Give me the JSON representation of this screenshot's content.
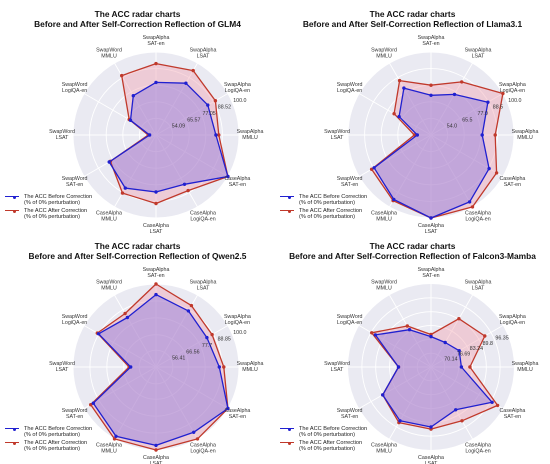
{
  "theme": {
    "before_color": "#2020d0",
    "after_color": "#c0392b",
    "after_fill": "#f2a6b4",
    "before_fill": "#8e7be0",
    "grid_bg": "#eaeaf2"
  },
  "legend": {
    "before_line1": "The ACC Before Correction",
    "before_line2": "(% of 0% perturbation)",
    "after_line1": "The ACC After Correction",
    "after_line2": "(% of 0% perturbation)"
  },
  "chart_data": [
    {
      "type": "radar",
      "title": "The ACC radar charts",
      "subtitle": "Before and After Self-Correction Reflection of GLM4",
      "axes": [
        "SwapAlpha SAT-en",
        "SwapAlpha LSAT",
        "SwapAlpha LogiQA-en",
        "SwapAlpha MMLU",
        "CaseAlpha SAT-en",
        "CaseAlpha LogiQA-en",
        "CaseAlpha LSAT",
        "CaseAlpha MMLU",
        "SwapWord SAT-en",
        "SwapWord LSAT",
        "SwapWord LogiQA-en",
        "SwapWord MMLU"
      ],
      "rticks": [
        54.09,
        65.57,
        77.05,
        88.52,
        100.0
      ],
      "rticks_shown": [
        true,
        true,
        true,
        true,
        true
      ],
      "rmin": 42.6,
      "rmax": 100.0,
      "series": [
        {
          "name": "The ACC Before Correction (% of 0% perturbation)",
          "values": [
            79,
            84,
            84,
            84,
            100,
            82,
            82,
            85,
            80,
            47,
            63,
            74
          ]
        },
        {
          "name": "The ACC After Correction (% of 0% perturbation)",
          "values": [
            92,
            94,
            90,
            86,
            100,
            87,
            90,
            89,
            79,
            48,
            64,
            90
          ]
        }
      ]
    },
    {
      "type": "radar",
      "title": "The ACC radar charts",
      "subtitle": "Before and After Self-Correction Reflection of Llama3.1",
      "axes": [
        "SwapAlpha SAT-en",
        "SwapAlpha LSAT",
        "SwapAlpha LogiQA-en",
        "SwapAlpha MMLU",
        "CaseAlpha SAT-en",
        "CaseAlpha LogiQA-en",
        "CaseAlpha LSAT",
        "CaseAlpha MMLU",
        "SwapWord SAT-en",
        "SwapWord LSAT",
        "SwapWord LogiQA-en",
        "SwapWord MMLU"
      ],
      "rticks": [
        54.0,
        65.5,
        77.0,
        88.5,
        100.0
      ],
      "rticks_shown": [
        true,
        true,
        true,
        true,
        true
      ],
      "rmin": 42.5,
      "rmax": 100.0,
      "series": [
        {
          "name": "The ACC Before Correction (% of 0% perturbation)",
          "values": [
            70,
            75,
            88,
            78,
            89,
            96,
            100,
            94,
            88,
            52,
            68,
            80
          ]
        },
        {
          "name": "The ACC After Correction (% of 0% perturbation)",
          "values": [
            77,
            85,
            100,
            87,
            95,
            100,
            100,
            95,
            90,
            54,
            72,
            86
          ]
        }
      ]
    },
    {
      "type": "radar",
      "title": "The ACC radar charts",
      "subtitle": "Before and After Self-Correction Reflection of Qwen2.5",
      "axes": [
        "SwapAlpha SAT-en",
        "SwapAlpha LSAT",
        "SwapAlpha LogiQA-en",
        "SwapAlpha MMLU",
        "CaseAlpha SAT-en",
        "CaseAlpha LogiQA-en",
        "CaseAlpha LSAT",
        "CaseAlpha MMLU",
        "SwapWord SAT-en",
        "SwapWord LSAT",
        "SwapWord LogiQA-en",
        "SwapWord MMLU"
      ],
      "rticks": [
        56.41,
        66.56,
        77.7,
        88.85,
        100.0
      ],
      "rticks_shown": [
        true,
        true,
        true,
        true,
        true
      ],
      "rmin": 45.3,
      "rmax": 100.0,
      "series": [
        {
          "name": "The ACC Before Correction (% of 0% perturbation)",
          "values": [
            93,
            88,
            84,
            87,
            100,
            95,
            97,
            98,
            93,
            62,
            89,
            83
          ]
        },
        {
          "name": "The ACC After Correction (% of 0% perturbation)",
          "values": [
            100,
            92,
            88,
            90,
            100,
            100,
            100,
            100,
            95,
            63,
            90,
            86
          ]
        }
      ]
    },
    {
      "type": "radar",
      "title": "The ACC radar charts",
      "subtitle": "Before and After Self-Correction Reflection of Falcon3-Mamba",
      "axes": [
        "SwapAlpha SAT-en",
        "SwapAlpha LSAT",
        "SwapAlpha LogiQA-en",
        "SwapAlpha MMLU",
        "CaseAlpha SAT-en",
        "CaseAlpha LogiQA-en",
        "CaseAlpha LSAT",
        "CaseAlpha MMLU",
        "SwapWord SAT-en",
        "SwapWord LSAT",
        "SwapWord LogiQA-en",
        "SwapWord MMLU"
      ],
      "rticks": [
        70.14,
        76.69,
        83.24,
        89.8,
        96.35
      ],
      "rticks_shown": [
        true,
        true,
        true,
        true,
        true
      ],
      "rmin": 63.6,
      "rmax": 102.9,
      "series": [
        {
          "name": "The ACC Before Correction (% of 0% perturbation)",
          "values": [
            78,
            77,
            79,
            78,
            97,
            87,
            92,
            93,
            90,
            79,
            94,
            84
          ]
        },
        {
          "name": "The ACC After Correction (% of 0% perturbation)",
          "values": [
            79,
            90,
            93,
            82,
            100,
            93,
            93,
            94,
            90,
            79,
            96,
            86
          ]
        }
      ]
    }
  ]
}
